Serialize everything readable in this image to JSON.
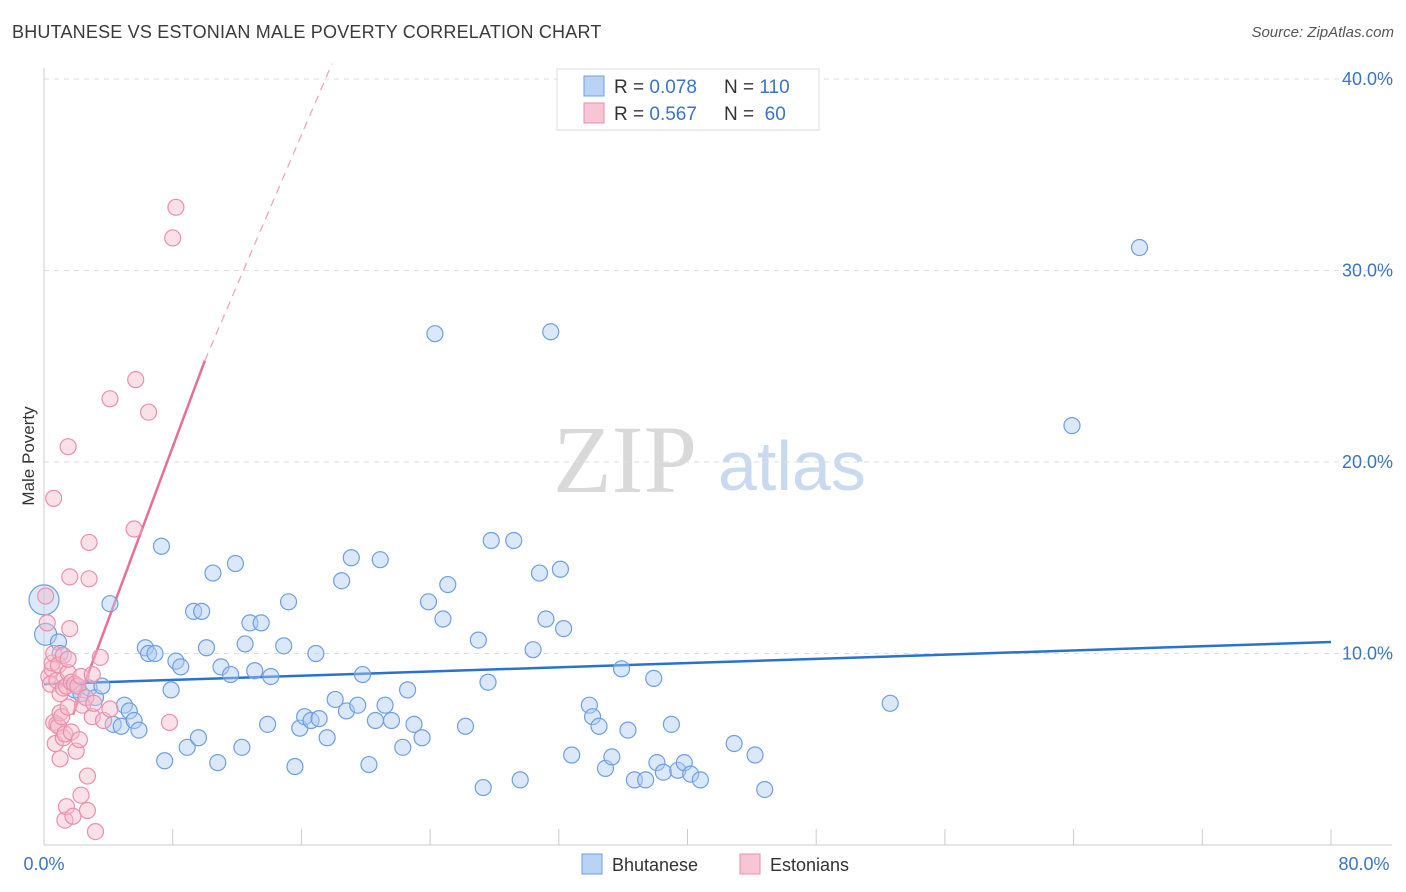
{
  "header": {
    "title": "BHUTANESE VS ESTONIAN MALE POVERTY CORRELATION CHART",
    "source": "Source: ZipAtlas.com"
  },
  "watermark": {
    "zip": "ZIP",
    "atlas": "atlas"
  },
  "legend_top": [
    {
      "r_label": "R = ",
      "r_value": "0.078",
      "n_label": "N = ",
      "n_value": "110",
      "color": "#a9c8f0"
    },
    {
      "r_label": "R = ",
      "r_value": "0.567",
      "n_label": "N = ",
      "n_value": " 60",
      "color": "#f5b8cb"
    }
  ],
  "legend_bottom": [
    {
      "label": "Bhutanese",
      "color": "#a9c8f0"
    },
    {
      "label": "Estonians",
      "color": "#f5b8cb"
    }
  ],
  "chart_data": {
    "type": "scatter",
    "title": "BHUTANESE VS ESTONIAN MALE POVERTY CORRELATION CHART",
    "xlabel": "",
    "ylabel": "Male Poverty",
    "xlim": [
      0,
      80
    ],
    "ylim": [
      0,
      40
    ],
    "x_tick_labels": [
      "0.0%",
      "80.0%"
    ],
    "y_ticks": [
      10,
      20,
      30,
      40
    ],
    "y_tick_labels": [
      "10.0%",
      "20.0%",
      "30.0%",
      "40.0%"
    ],
    "grid": true,
    "legend_placement": "top-center",
    "series": [
      {
        "name": "Bhutanese",
        "color": "#6f9fe0",
        "fill": "#aecbf1",
        "r": 0.078,
        "n": 110,
        "trend": {
          "x": [
            0,
            80
          ],
          "y": [
            8.4,
            10.6
          ]
        },
        "points": [
          [
            0.0,
            12.8
          ],
          [
            0.1,
            11.0
          ],
          [
            0.9,
            10.6
          ],
          [
            1.0,
            10.0
          ],
          [
            1.9,
            8.1
          ],
          [
            2.3,
            7.9
          ],
          [
            2.8,
            8.2
          ],
          [
            3.2,
            7.7
          ],
          [
            3.6,
            8.3
          ],
          [
            4.1,
            12.6
          ],
          [
            4.3,
            6.3
          ],
          [
            4.8,
            6.2
          ],
          [
            5.0,
            7.3
          ],
          [
            5.3,
            7.0
          ],
          [
            5.6,
            6.5
          ],
          [
            5.9,
            6.0
          ],
          [
            6.3,
            10.3
          ],
          [
            6.5,
            10.0
          ],
          [
            6.9,
            10.0
          ],
          [
            7.3,
            15.6
          ],
          [
            7.5,
            4.4
          ],
          [
            7.9,
            8.1
          ],
          [
            8.2,
            9.6
          ],
          [
            8.5,
            9.3
          ],
          [
            8.9,
            5.1
          ],
          [
            9.3,
            12.2
          ],
          [
            9.6,
            5.6
          ],
          [
            9.8,
            12.2
          ],
          [
            10.1,
            10.3
          ],
          [
            10.5,
            14.2
          ],
          [
            10.8,
            4.3
          ],
          [
            11.0,
            9.3
          ],
          [
            11.6,
            8.9
          ],
          [
            11.9,
            14.7
          ],
          [
            12.3,
            5.1
          ],
          [
            12.5,
            10.5
          ],
          [
            12.8,
            11.6
          ],
          [
            13.1,
            9.1
          ],
          [
            13.5,
            11.6
          ],
          [
            13.9,
            6.3
          ],
          [
            14.1,
            8.8
          ],
          [
            14.9,
            10.4
          ],
          [
            15.2,
            12.7
          ],
          [
            15.6,
            4.1
          ],
          [
            15.9,
            6.1
          ],
          [
            16.2,
            6.7
          ],
          [
            16.6,
            6.5
          ],
          [
            16.9,
            10.0
          ],
          [
            17.1,
            6.6
          ],
          [
            17.6,
            5.6
          ],
          [
            18.1,
            7.6
          ],
          [
            18.5,
            13.8
          ],
          [
            18.8,
            7.0
          ],
          [
            19.1,
            15.0
          ],
          [
            19.5,
            7.3
          ],
          [
            19.8,
            8.9
          ],
          [
            20.2,
            4.2
          ],
          [
            20.6,
            6.5
          ],
          [
            20.9,
            14.9
          ],
          [
            21.2,
            7.3
          ],
          [
            21.6,
            6.5
          ],
          [
            22.3,
            5.1
          ],
          [
            22.6,
            8.1
          ],
          [
            23.0,
            6.3
          ],
          [
            23.5,
            5.6
          ],
          [
            23.9,
            12.7
          ],
          [
            24.3,
            26.7
          ],
          [
            24.8,
            11.8
          ],
          [
            25.1,
            13.6
          ],
          [
            26.2,
            6.2
          ],
          [
            27.0,
            10.7
          ],
          [
            27.3,
            3.0
          ],
          [
            27.6,
            8.5
          ],
          [
            27.8,
            15.9
          ],
          [
            29.2,
            15.9
          ],
          [
            29.6,
            3.4
          ],
          [
            30.4,
            10.2
          ],
          [
            30.8,
            14.2
          ],
          [
            31.2,
            11.8
          ],
          [
            31.5,
            26.8
          ],
          [
            32.1,
            14.4
          ],
          [
            32.3,
            11.3
          ],
          [
            32.8,
            4.7
          ],
          [
            33.9,
            7.3
          ],
          [
            34.1,
            6.7
          ],
          [
            34.5,
            6.2
          ],
          [
            34.9,
            4.0
          ],
          [
            35.3,
            4.6
          ],
          [
            35.9,
            9.2
          ],
          [
            36.3,
            6.0
          ],
          [
            36.7,
            3.4
          ],
          [
            37.4,
            3.4
          ],
          [
            37.9,
            8.7
          ],
          [
            38.1,
            4.3
          ],
          [
            38.5,
            3.8
          ],
          [
            39.0,
            6.3
          ],
          [
            39.4,
            3.9
          ],
          [
            39.8,
            4.3
          ],
          [
            40.2,
            3.7
          ],
          [
            40.8,
            3.4
          ],
          [
            42.9,
            5.3
          ],
          [
            44.2,
            4.7
          ],
          [
            44.8,
            2.9
          ],
          [
            52.6,
            7.4
          ],
          [
            63.9,
            21.9
          ],
          [
            68.1,
            31.2
          ]
        ]
      },
      {
        "name": "Estonians",
        "color": "#ea8fae",
        "fill": "#f5bccd",
        "r": 0.567,
        "n": 60,
        "trend": {
          "x": [
            1.8,
            10.0
          ],
          "y": [
            6.8,
            25.3
          ]
        },
        "trend_dashed": {
          "x": [
            10.0,
            17.9
          ],
          "y": [
            25.3,
            40.8
          ]
        },
        "points": [
          [
            0.1,
            13.0
          ],
          [
            0.2,
            11.6
          ],
          [
            0.3,
            8.8
          ],
          [
            0.4,
            8.4
          ],
          [
            0.5,
            9.2
          ],
          [
            0.5,
            9.5
          ],
          [
            0.6,
            10.0
          ],
          [
            0.6,
            6.4
          ],
          [
            0.6,
            18.1
          ],
          [
            0.7,
            5.3
          ],
          [
            0.8,
            6.3
          ],
          [
            0.8,
            8.6
          ],
          [
            0.9,
            6.2
          ],
          [
            0.9,
            9.4
          ],
          [
            1.0,
            4.5
          ],
          [
            1.0,
            6.9
          ],
          [
            1.0,
            7.9
          ],
          [
            1.1,
            6.7
          ],
          [
            1.2,
            8.2
          ],
          [
            1.2,
            9.9
          ],
          [
            1.2,
            5.6
          ],
          [
            1.3,
            5.8
          ],
          [
            1.3,
            1.3
          ],
          [
            1.4,
            8.3
          ],
          [
            1.4,
            2.0
          ],
          [
            1.5,
            7.2
          ],
          [
            1.5,
            9.0
          ],
          [
            1.5,
            9.7
          ],
          [
            1.5,
            20.8
          ],
          [
            1.6,
            14.0
          ],
          [
            1.6,
            11.3
          ],
          [
            1.7,
            8.5
          ],
          [
            1.7,
            5.9
          ],
          [
            1.8,
            1.5
          ],
          [
            1.9,
            8.4
          ],
          [
            2.0,
            4.9
          ],
          [
            2.1,
            8.3
          ],
          [
            2.2,
            5.5
          ],
          [
            2.3,
            8.8
          ],
          [
            2.3,
            2.6
          ],
          [
            2.4,
            7.3
          ],
          [
            2.6,
            7.7
          ],
          [
            2.7,
            1.8
          ],
          [
            2.7,
            3.6
          ],
          [
            2.8,
            15.8
          ],
          [
            2.8,
            13.9
          ],
          [
            3.0,
            6.7
          ],
          [
            3.0,
            8.9
          ],
          [
            3.1,
            7.4
          ],
          [
            3.2,
            0.7
          ],
          [
            3.5,
            9.8
          ],
          [
            3.7,
            6.5
          ],
          [
            4.1,
            7.1
          ],
          [
            4.1,
            23.3
          ],
          [
            5.6,
            16.5
          ],
          [
            5.7,
            24.3
          ],
          [
            6.5,
            22.6
          ],
          [
            7.8,
            6.4
          ],
          [
            8.0,
            31.7
          ],
          [
            8.2,
            33.3
          ]
        ]
      }
    ]
  }
}
